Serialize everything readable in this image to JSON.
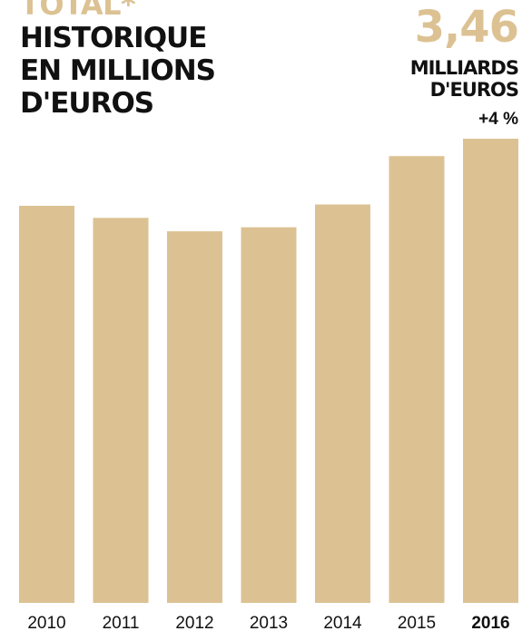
{
  "header": {
    "title_top": "TOTAL*",
    "title_lines": [
      "HISTORIQUE",
      "EN MILLIONS",
      "D'EUROS"
    ],
    "headline_value": "3,46",
    "headline_unit_lines": [
      "MILLIARDS",
      "D'EUROS"
    ],
    "headline_change": "+4 %"
  },
  "colors": {
    "bar": "#dcc293",
    "text": "#111111",
    "accent": "#dcc293"
  },
  "chart_data": {
    "type": "bar",
    "categories": [
      "2010",
      "2011",
      "2012",
      "2013",
      "2014",
      "2015",
      "2016"
    ],
    "values": [
      2.96,
      2.87,
      2.77,
      2.8,
      2.97,
      3.33,
      3.46
    ],
    "ylim": [
      0,
      3.46
    ],
    "highlight_category": "2016",
    "title": "",
    "xlabel": "",
    "ylabel": "",
    "grid": false,
    "legend": "none"
  }
}
